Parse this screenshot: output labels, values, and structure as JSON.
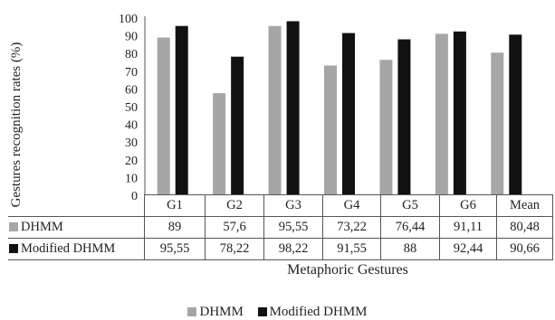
{
  "chart_data": {
    "type": "bar",
    "categories": [
      "G1",
      "G2",
      "G3",
      "G4",
      "G5",
      "G6",
      "Mean"
    ],
    "series": [
      {
        "name": "DHMM",
        "color": "#a6a6a6",
        "values": [
          89,
          57.6,
          95.55,
          73.22,
          76.44,
          91.11,
          80.48
        ],
        "labels": [
          "89",
          "57,6",
          "95,55",
          "73,22",
          "76,44",
          "91,11",
          "80,48"
        ]
      },
      {
        "name": "Modified DHMM",
        "color": "#111111",
        "values": [
          95.55,
          78.22,
          98.22,
          91.55,
          88,
          92.44,
          90.66
        ],
        "labels": [
          "95,55",
          "78,22",
          "98,22",
          "91,55",
          "88",
          "92,44",
          "90,66"
        ]
      }
    ],
    "title": "",
    "xlabel": "Metaphoric Gestures",
    "ylabel": "Gestures recognition rates (%)",
    "ylim": [
      0,
      100
    ],
    "yticks": [
      0,
      10,
      20,
      30,
      40,
      50,
      60,
      70,
      80,
      90,
      100
    ],
    "grid": false,
    "legend_position": "bottom",
    "data_table": true
  }
}
